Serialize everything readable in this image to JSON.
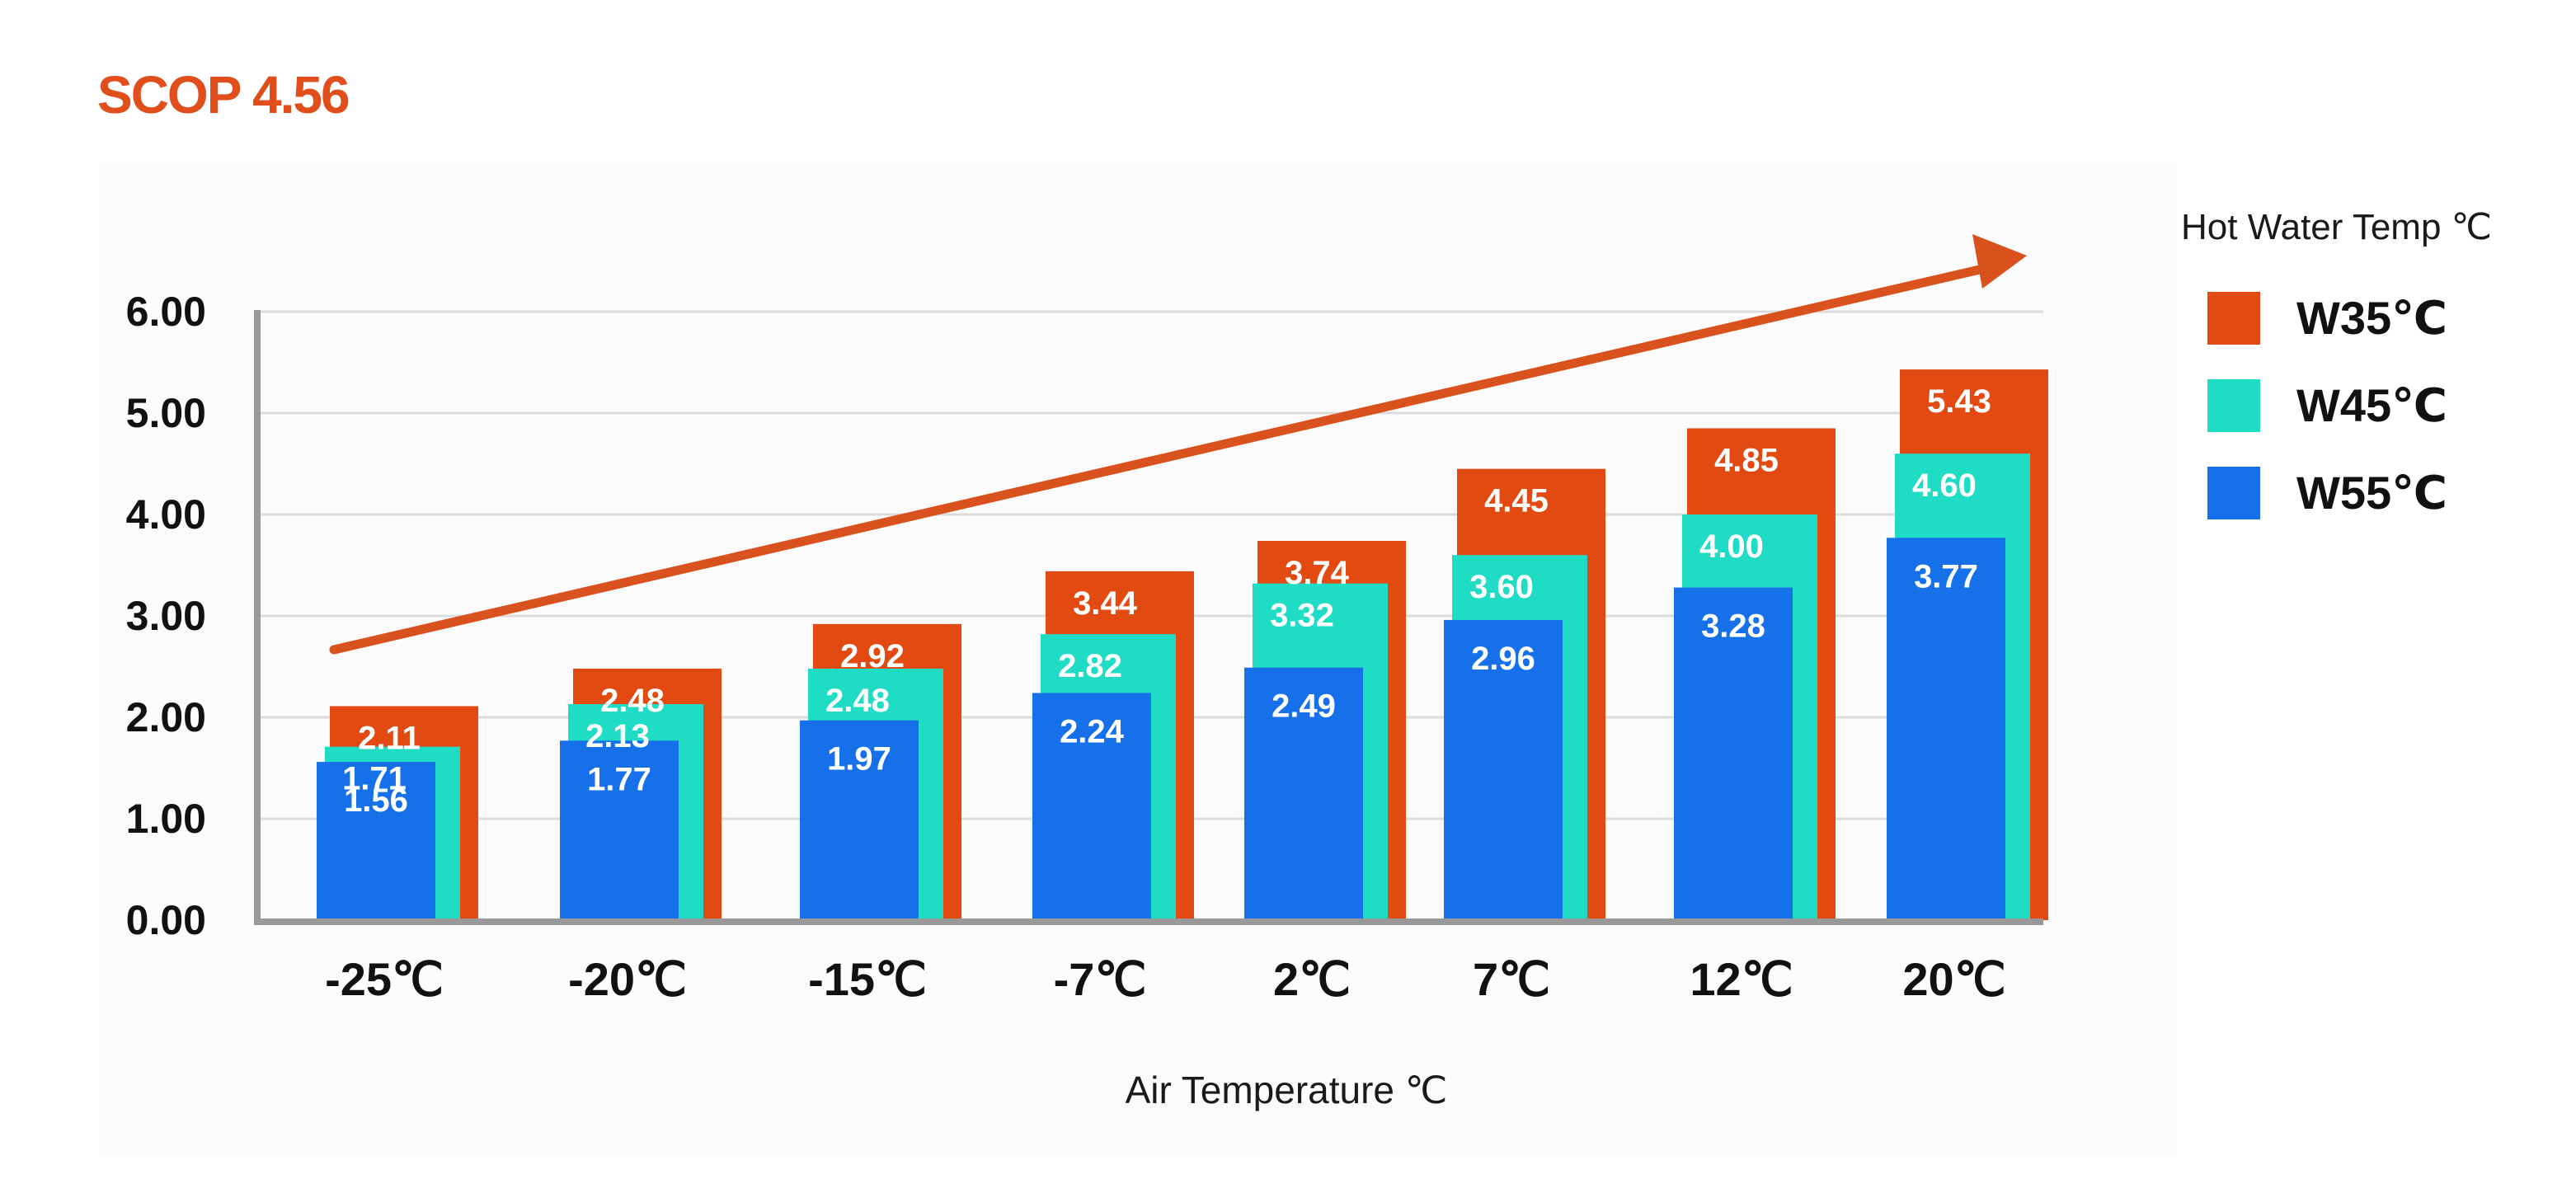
{
  "title": "SCOP 4.56",
  "colors": {
    "title": "#e04e1c",
    "arrow": "#d9511d"
  },
  "chart_data": {
    "type": "bar",
    "subtype": "overlapping-stacked",
    "xlabel": "Air Temperature ℃",
    "ylabel": "",
    "ylim": [
      0,
      6
    ],
    "yticks": [
      "0.00",
      "1.00",
      "2.00",
      "3.00",
      "4.00",
      "5.00",
      "6.00"
    ],
    "grid": true,
    "legend_position": "right",
    "legend_title": "Hot Water Temp ℃",
    "categories": [
      "-25℃",
      "-20℃",
      "-15℃",
      "-7℃",
      "2℃",
      "7℃",
      "12℃",
      "20℃"
    ],
    "series": [
      {
        "name": "W35℃",
        "color": "#e34a12",
        "values": [
          2.11,
          2.48,
          2.92,
          3.44,
          3.74,
          4.45,
          4.85,
          5.43
        ],
        "labels": [
          "2.11",
          "2.48",
          "2.92",
          "3.44",
          "3.74",
          "4.45",
          "4.85",
          "5.43"
        ]
      },
      {
        "name": "W45℃",
        "color": "#1fdcc4",
        "values": [
          1.71,
          2.13,
          2.48,
          2.82,
          3.32,
          3.6,
          4.0,
          4.6
        ],
        "labels": [
          "1.71",
          "2.13",
          "2.48",
          "2.82",
          "3.32",
          "3.60",
          "4.00",
          "4.60"
        ]
      },
      {
        "name": "W55℃",
        "color": "#1670ea",
        "values": [
          1.56,
          1.77,
          1.97,
          2.24,
          2.49,
          2.96,
          3.28,
          3.77
        ],
        "labels": [
          "1.56",
          "1.77",
          "1.97",
          "2.24",
          "2.49",
          "2.96",
          "3.28",
          "3.77"
        ]
      }
    ],
    "annotations": [
      {
        "type": "trend-arrow",
        "description": "rising arrow above bars"
      }
    ]
  }
}
